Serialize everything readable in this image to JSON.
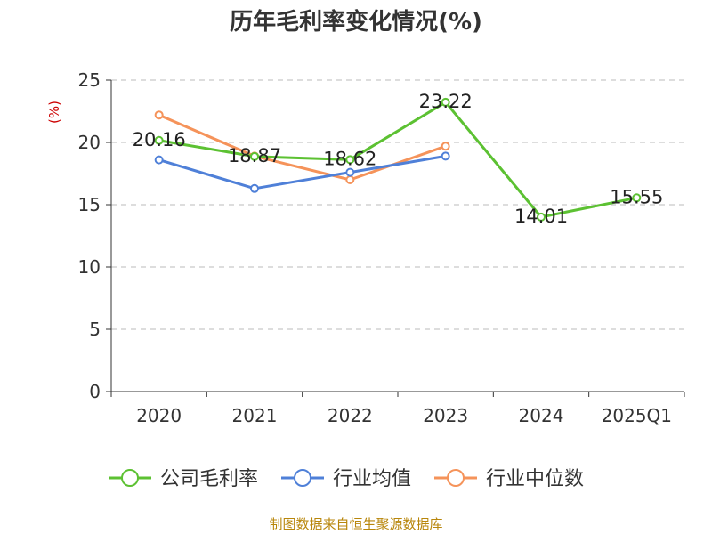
{
  "title": "历年毛利率变化情况(%)",
  "source": "制图数据来自恒生聚源数据库",
  "chart_data": {
    "type": "line",
    "title": "历年毛利率变化情况(%)",
    "ylabel": "(%)",
    "ylim": [
      0,
      25
    ],
    "yticks": [
      0,
      5,
      10,
      15,
      20,
      25
    ],
    "grid": true,
    "legend_position": "bottom",
    "categories": [
      "2020",
      "2021",
      "2022",
      "2023",
      "2024",
      "2025Q1"
    ],
    "series": [
      {
        "name": "公司毛利率",
        "color": "#5cc132",
        "values": [
          20.16,
          18.87,
          18.62,
          23.22,
          14.01,
          15.55
        ],
        "data_labels": [
          "20.16",
          "18.87",
          "18.62",
          "23.22",
          "14.01",
          "15.55"
        ]
      },
      {
        "name": "行业均值",
        "color": "#4f80d8",
        "values": [
          18.6,
          16.3,
          17.6,
          18.9,
          null,
          null
        ]
      },
      {
        "name": "行业中位数",
        "color": "#f5935a",
        "values": [
          22.2,
          18.9,
          17.0,
          19.7,
          null,
          null
        ]
      }
    ]
  }
}
